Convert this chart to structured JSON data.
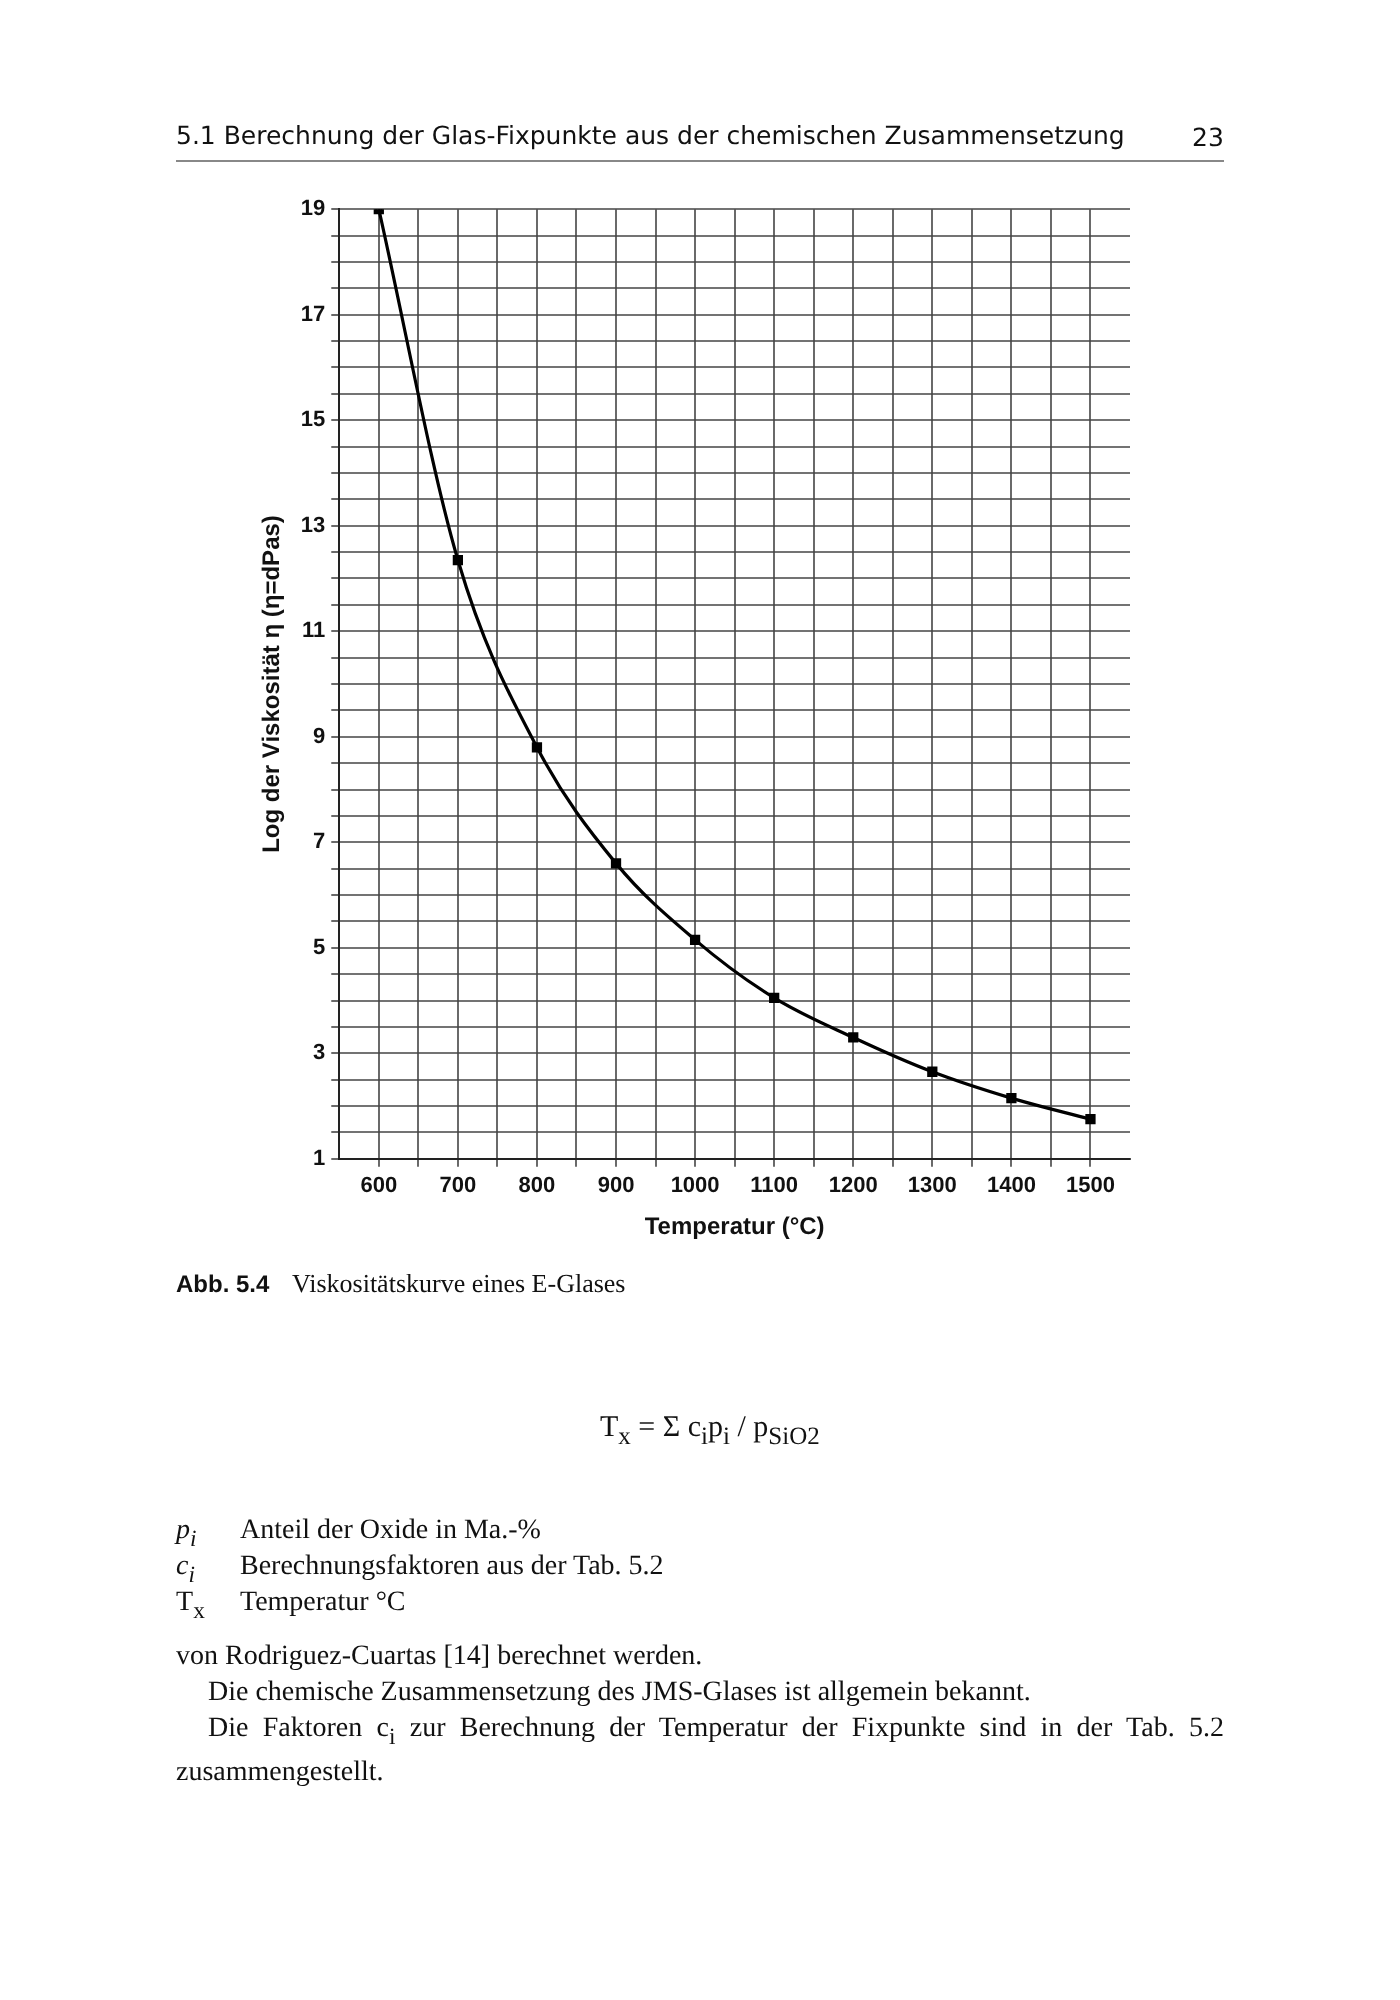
{
  "chart_data": {
    "type": "line",
    "title": "5.1   Berechnung der Glas-Fixpunkte aus der chemischen Zusammensetzung",
    "xlabel": "Temperatur (°C)",
    "ylabel": "Log der Viskosität η (η=dPas)",
    "x": [
      600,
      700,
      800,
      900,
      1000,
      1100,
      1200,
      1300,
      1400,
      1500
    ],
    "series": [
      {
        "color": "#000000",
        "values": [
          19,
          12.35,
          8.8,
          6.6,
          5.15,
          4.05,
          3.3,
          2.65,
          2.15,
          1.75
        ]
      }
    ],
    "xlim": [
      550,
      1550
    ],
    "xticks": [
      600,
      {
        "value": 650,
        "label": null
      },
      700,
      {
        "value": 750,
        "label": null
      },
      800,
      {
        "value": 850,
        "label": null
      },
      900,
      {
        "value": 950,
        "label": null
      },
      1000,
      {
        "value": 1050,
        "label": null
      },
      1100,
      {
        "value": 1150,
        "label": null
      },
      1200,
      {
        "value": 1250,
        "label": null
      },
      1300,
      {
        "value": 1350,
        "label": null
      },
      1400,
      {
        "value": 1450,
        "label": null
      },
      1500
    ],
    "ylim": [
      1,
      19
    ],
    "yticks": [
      1,
      {
        "value": 1.5,
        "label": null
      },
      {
        "value": 2,
        "label": null
      },
      {
        "value": 2.5,
        "label": null
      },
      3,
      {
        "value": 3.5,
        "label": null
      },
      {
        "value": 4,
        "label": null
      },
      {
        "value": 4.5,
        "label": null
      },
      5,
      {
        "value": 5.5,
        "label": null
      },
      {
        "value": 6,
        "label": null
      },
      {
        "value": 6.5,
        "label": null
      },
      7,
      {
        "value": 7.5,
        "label": null
      },
      {
        "value": 8,
        "label": null
      },
      {
        "value": 8.5,
        "label": null
      },
      9,
      {
        "value": 9.5,
        "label": null
      },
      {
        "value": 10,
        "label": null
      },
      {
        "value": 10.5,
        "label": null
      },
      11,
      {
        "value": 11.5,
        "label": null
      },
      {
        "value": 12,
        "label": null
      },
      {
        "value": 12.5,
        "label": null
      },
      13,
      {
        "value": 13.5,
        "label": null
      },
      {
        "value": 14,
        "label": null
      },
      {
        "value": 14.5,
        "label": null
      },
      15,
      {
        "value": 15.5,
        "label": null
      },
      {
        "value": 16,
        "label": null
      },
      {
        "value": 16.5,
        "label": null
      },
      17,
      {
        "value": 17.5,
        "label": null
      },
      {
        "value": 18,
        "label": null
      },
      {
        "value": 18.5,
        "label": null
      },
      19
    ],
    "grid": true,
    "marker": "square",
    "line_style": "solid",
    "legend": false,
    "annotations": [
      "23",
      "Abb. 5.4",
      "Viskositätskurve eines E-Glases",
      "T$_{x}$ = Σ c$_{i}$p$_{i}$ / p$_{SiO2}$",
      "p$_{i}$",
      "Anteil der Oxide in Ma.-%",
      "c$_{i}$",
      "Berechnungsfaktoren aus der Tab. 5.2",
      "T$_{x}$",
      "Temperatur °C",
      "von Rodriguez-Cuartas [14] berechnet werden.",
      "Die chemische Zusammensetzung des JMS-Glases ist allgemein bekannt.",
      "Die Faktoren c$_{i}$ zur Berechnung der Temperatur der Fixpunkte sind in der Tab. 5.2 zusammengestellt."
    ]
  }
}
